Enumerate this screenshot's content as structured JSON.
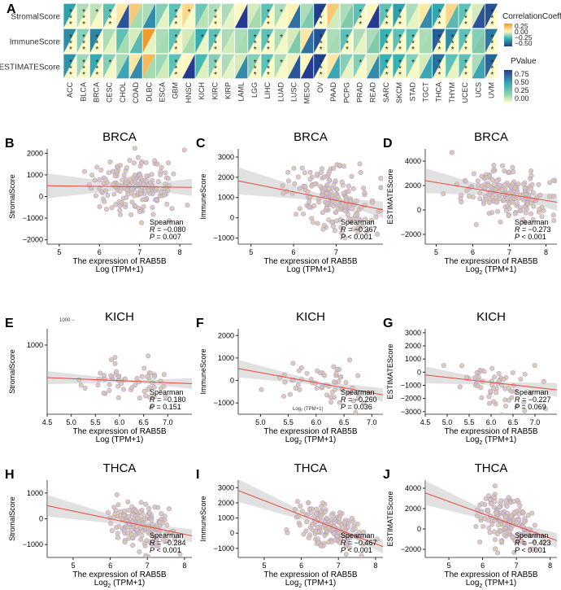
{
  "panel_a": {
    "letter": "A",
    "rows": [
      "StromalScore",
      "ImmuneScore",
      "ESTIMATEScore"
    ],
    "cancers": [
      "ACC",
      "BLCA",
      "BRCA",
      "CESC",
      "CHOL",
      "COAD",
      "DLBC",
      "ESCA",
      "GBM",
      "HNSC",
      "KICH",
      "KIRC",
      "KIRP",
      "LAML",
      "LGG",
      "LIHC",
      "LUAD",
      "LUSC",
      "MESO",
      "OV",
      "PAAD",
      "PCPG",
      "PRAD",
      "READ",
      "SARC",
      "SKCM",
      "STAD",
      "TGCT",
      "THCA",
      "THYM",
      "UCEC",
      "UCS",
      "UVM"
    ],
    "coeff_legend_title": "CorrelationCoeff",
    "coeff_ticks": [
      "0.25",
      "0.00",
      "−0.25",
      "−0.50"
    ],
    "pvalue_legend_title": "PValue",
    "pvalue_ticks": [
      "0.75",
      "0.50",
      "0.25",
      "0.00"
    ],
    "colors": {
      "pos": "#f39a2b",
      "zero": "#fdf8c0",
      "neg_mid": "#35b3b3",
      "neg_strong": "#1f3f8f"
    }
  },
  "chart_data": {
    "type": "heatmap",
    "rows": [
      "StromalScore",
      "ImmuneScore",
      "ESTIMATEScore"
    ],
    "columns": [
      "ACC",
      "BLCA",
      "BRCA",
      "CESC",
      "CHOL",
      "COAD",
      "DLBC",
      "ESCA",
      "GBM",
      "HNSC",
      "KICH",
      "KIRC",
      "KIRP",
      "LAML",
      "LGG",
      "LIHC",
      "LUAD",
      "LUSC",
      "MESO",
      "OV",
      "PAAD",
      "PCPG",
      "PRAD",
      "READ",
      "SARC",
      "SKCM",
      "STAD",
      "TGCT",
      "THCA",
      "THYM",
      "UCEC",
      "UCS",
      "UVM"
    ],
    "correlation": [
      [
        -0.3,
        -0.1,
        -0.08,
        -0.2,
        0.05,
        0.15,
        -0.1,
        -0.15,
        -0.2,
        0.1,
        -0.18,
        -0.1,
        -0.1,
        0.0,
        -0.05,
        -0.2,
        -0.1,
        0.02,
        -0.1,
        -0.55,
        0.15,
        -0.1,
        -0.2,
        0.0,
        -0.2,
        -0.3,
        -0.1,
        0.05,
        -0.28,
        0.1,
        -0.2,
        -0.05,
        -0.5
      ],
      [
        -0.35,
        -0.15,
        -0.37,
        -0.1,
        -0.2,
        -0.05,
        0.3,
        -0.1,
        -0.2,
        -0.05,
        -0.26,
        -0.2,
        -0.1,
        -0.1,
        -0.2,
        -0.2,
        -0.1,
        -0.05,
        0.05,
        -0.5,
        -0.1,
        -0.2,
        -0.1,
        -0.1,
        -0.25,
        -0.2,
        -0.2,
        -0.1,
        -0.47,
        -0.35,
        -0.2,
        -0.15,
        -0.4
      ],
      [
        -0.33,
        -0.12,
        -0.27,
        -0.15,
        -0.1,
        0.05,
        0.2,
        -0.12,
        -0.2,
        0.0,
        -0.23,
        -0.15,
        -0.1,
        -0.05,
        -0.15,
        -0.2,
        -0.1,
        -0.02,
        0.0,
        -0.55,
        0.05,
        -0.15,
        -0.15,
        -0.05,
        -0.25,
        -0.25,
        -0.15,
        -0.05,
        -0.42,
        -0.2,
        -0.2,
        -0.1,
        -0.45
      ]
    ],
    "pvalue": [
      [
        0.0,
        0.0,
        0.01,
        0.0,
        0.8,
        0.2,
        0.6,
        0.05,
        0.0,
        0.01,
        0.15,
        0.0,
        0.05,
        0.95,
        0.2,
        0.0,
        0.01,
        0.7,
        0.3,
        0.0,
        0.1,
        0.3,
        0.0,
        0.95,
        0.0,
        0.0,
        0.05,
        0.6,
        0.0,
        0.4,
        0.0,
        0.8,
        0.0
      ],
      [
        0.0,
        0.0,
        0.0,
        0.05,
        0.2,
        0.4,
        0.05,
        0.2,
        0.0,
        0.2,
        0.04,
        0.0,
        0.1,
        0.2,
        0.0,
        0.0,
        0.02,
        0.3,
        0.7,
        0.0,
        0.2,
        0.0,
        0.05,
        0.3,
        0.0,
        0.0,
        0.0,
        0.2,
        0.0,
        0.0,
        0.0,
        0.3,
        0.0
      ],
      [
        0.0,
        0.0,
        0.0,
        0.02,
        0.5,
        0.6,
        0.2,
        0.1,
        0.0,
        0.9,
        0.07,
        0.0,
        0.05,
        0.6,
        0.0,
        0.0,
        0.01,
        0.8,
        0.9,
        0.0,
        0.5,
        0.05,
        0.01,
        0.6,
        0.0,
        0.0,
        0.01,
        0.5,
        0.0,
        0.05,
        0.0,
        0.5,
        0.0
      ]
    ],
    "coeff_range": [
      -0.6,
      0.35
    ],
    "pvalue_range": [
      0,
      1
    ],
    "significance_marker": "*"
  },
  "scatter_panels": [
    {
      "letter": "B",
      "title": "BRCA",
      "ylabel": "StromalScore",
      "xlabel": "The expression of RAB5B",
      "xlabel2": "Log",
      "xlabel_tail": "(TPM+1)",
      "xlim": [
        4.7,
        8.3
      ],
      "ylim": [
        -2200,
        2200
      ],
      "xticks": [
        "5",
        "6",
        "7",
        "8"
      ],
      "yticks": [
        "2000",
        "1000",
        "0",
        "−1000",
        "−2000"
      ],
      "ytick_vals": [
        2000,
        1000,
        0,
        -1000,
        -2000
      ],
      "xtick_vals": [
        5,
        6,
        7,
        8
      ],
      "method": "Spearman",
      "r_label": "R",
      "r_value": "= −0.080",
      "p_label": "P",
      "p_value": "= 0.007",
      "r": -0.08,
      "n": 190,
      "center": [
        6.9,
        500
      ],
      "spread": [
        0.55,
        650
      ],
      "intercept": 590,
      "slope": -20
    },
    {
      "letter": "C",
      "title": "BRCA",
      "ylabel": "ImmuneScore",
      "xlabel": "The expression of RAB5B",
      "xlabel2": "Log",
      "xlabel_tail": "(TPM+1)",
      "xlim": [
        4.7,
        8.1
      ],
      "ylim": [
        -1300,
        3400
      ],
      "xticks": [
        "5",
        "6",
        "7"
      ],
      "yticks": [
        "3000",
        "2000",
        "1000",
        "0",
        "−1000"
      ],
      "ytick_vals": [
        3000,
        2000,
        1000,
        0,
        -1000
      ],
      "xtick_vals": [
        5,
        6,
        7
      ],
      "method": "Spearman",
      "r_label": "R",
      "r_value": "= −0.367",
      "p_label": "P",
      "p_value": "< 0.001",
      "r": -0.367,
      "n": 190,
      "center": [
        6.9,
        1200
      ],
      "spread": [
        0.55,
        750
      ],
      "intercept": 3800,
      "slope": -420
    },
    {
      "letter": "D",
      "title": "BRCA",
      "ylabel": "ESTIMATEScore",
      "xlabel": "The expression of RAB5B",
      "xlabel2": "Log",
      "xlabel_sub": "2",
      "xlabel_tail": "(TPM+1)",
      "xlim": [
        4.7,
        8.3
      ],
      "ylim": [
        -2800,
        5000
      ],
      "xticks": [
        "5",
        "6",
        "7",
        "8"
      ],
      "yticks": [
        "4000",
        "2000",
        "0",
        "−2000"
      ],
      "ytick_vals": [
        4000,
        2000,
        0,
        -2000
      ],
      "xtick_vals": [
        5,
        6,
        7,
        8
      ],
      "method": "Spearman",
      "r_label": "R",
      "r_value": "= −0.273",
      "p_label": "P",
      "p_value": "< 0.001",
      "r": -0.273,
      "n": 190,
      "center": [
        6.9,
        1500
      ],
      "spread": [
        0.55,
        1150
      ],
      "intercept": 4700,
      "slope": -490
    },
    {
      "letter": "E",
      "title": "KICH",
      "ylabel": "StromalScore",
      "xlabel": "The expression of RAB5B",
      "xlabel2": "Log",
      "xlabel_tail": "(TPM+1)",
      "xlim": [
        4.5,
        7.5
      ],
      "ylim": [
        -2400,
        1800
      ],
      "xticks": [
        "4.5",
        "5.0",
        "5.5",
        "6.0",
        "6.5",
        "7.0"
      ],
      "yticks": [
        "1000"
      ],
      "ytick_vals": [
        1000
      ],
      "xtick_vals": [
        4.5,
        5.0,
        5.5,
        6.0,
        6.5,
        7.0
      ],
      "method": "Spearman",
      "r_label": "R",
      "r_value": "= −0.180",
      "p_label": "P",
      "p_value": "= 0.151",
      "r": -0.18,
      "n": 60,
      "center": [
        6.2,
        -700
      ],
      "spread": [
        0.45,
        450
      ],
      "intercept": -150,
      "slope": -100
    },
    {
      "letter": "F",
      "title": "KICH",
      "ylabel": "ImmuneScore",
      "xlabel": "The expression of RAB5B",
      "xlabel2": "Log",
      "xlabel_sub": "2",
      "xlabel_tail": "(TPM+1)",
      "xlim": [
        4.6,
        7.2
      ],
      "ylim": [
        -1500,
        2300
      ],
      "xticks": [
        "5.0",
        "5.5",
        "6.0",
        "6.5",
        "7.0"
      ],
      "yticks": [
        "2000",
        "1000",
        "0",
        "−1000"
      ],
      "ytick_vals": [
        2000,
        1000,
        0,
        -1000
      ],
      "xtick_vals": [
        5.0,
        5.5,
        6.0,
        6.5,
        7.0
      ],
      "method": "Spearman",
      "r_label": "R",
      "r_value": "= −0.260",
      "p_label": "P",
      "p_value": "= 0.036",
      "r": -0.26,
      "n": 60,
      "center": [
        6.1,
        -200
      ],
      "spread": [
        0.45,
        600
      ],
      "intercept": 2600,
      "slope": -450
    },
    {
      "letter": "G",
      "title": "KICH",
      "ylabel": "ESTIMATEScore",
      "xlabel": "The expression of RAB5B",
      "xlabel2": "Log",
      "xlabel_sub": "2",
      "xlabel_tail": "(TPM+1)",
      "xlim": [
        4.5,
        7.5
      ],
      "ylim": [
        -3200,
        3300
      ],
      "xticks": [
        "4.5",
        "5.0",
        "5.5",
        "6.0",
        "6.5",
        "7.0"
      ],
      "yticks": [
        "3000",
        "2000",
        "1000",
        "0",
        "−1000",
        "−2000",
        "−3000"
      ],
      "ytick_vals": [
        3000,
        2000,
        1000,
        0,
        -1000,
        -2000,
        -3000
      ],
      "xtick_vals": [
        4.5,
        5.0,
        5.5,
        6.0,
        6.5,
        7.0
      ],
      "method": "Spearman",
      "r_label": "R",
      "r_value": "= −0.227",
      "p_label": "P",
      "p_value": "= 0.069",
      "r": -0.227,
      "n": 60,
      "center": [
        6.2,
        -800
      ],
      "spread": [
        0.45,
        900
      ],
      "intercept": 1500,
      "slope": -380
    },
    {
      "letter": "H",
      "title": "THCA",
      "ylabel": "StromalScore",
      "xlabel": "The expression of RAB5B",
      "xlabel2": "Log",
      "xlabel_sub": "2",
      "xlabel_tail": "(TPM+1)",
      "xlim": [
        4.3,
        8.2
      ],
      "ylim": [
        -1500,
        1500
      ],
      "xticks": [
        "5",
        "6",
        "7",
        "8"
      ],
      "yticks": [
        "1000",
        "0",
        "−1000"
      ],
      "ytick_vals": [
        1000,
        0,
        -1000
      ],
      "xtick_vals": [
        5,
        6,
        7,
        8
      ],
      "method": "Spearman",
      "r_label": "R",
      "r_value": "= −0.284",
      "p_label": "P",
      "p_value": "< 0.001",
      "r": -0.284,
      "n": 170,
      "center": [
        6.8,
        -100
      ],
      "spread": [
        0.45,
        420
      ],
      "intercept": 1800,
      "slope": -300
    },
    {
      "letter": "I",
      "title": "THCA",
      "ylabel": "ImmuneScore",
      "xlabel": "The expression of RAB5B",
      "xlabel2": "Log",
      "xlabel_sub": "2",
      "xlabel_tail": "(TPM+1)",
      "xlim": [
        4.3,
        8.2
      ],
      "ylim": [
        -1600,
        3500
      ],
      "xticks": [
        "5",
        "6",
        "7",
        "8"
      ],
      "yticks": [
        "3000",
        "2000",
        "1000",
        "0",
        "−1000"
      ],
      "ytick_vals": [
        3000,
        2000,
        1000,
        0,
        -1000
      ],
      "xtick_vals": [
        5,
        6,
        7,
        8
      ],
      "method": "Spearman",
      "r_label": "R",
      "r_value": "= −0.467",
      "p_label": "P",
      "p_value": "< 0.001",
      "r": -0.467,
      "n": 170,
      "center": [
        6.8,
        500
      ],
      "spread": [
        0.45,
        750
      ],
      "intercept": 6900,
      "slope": -950
    },
    {
      "letter": "J",
      "title": "THCA",
      "ylabel": "ESTIMATEScore",
      "xlabel": "The expression of RAB5B",
      "xlabel2": "Log",
      "xlabel_sub": "2",
      "xlabel_tail": "(TPM+1)",
      "xlim": [
        4.3,
        8.2
      ],
      "ylim": [
        -2800,
        4800
      ],
      "xticks": [
        "5",
        "6",
        "7",
        "8"
      ],
      "yticks": [
        "4000",
        "2000",
        "0",
        "−2000"
      ],
      "ytick_vals": [
        4000,
        2000,
        0,
        -2000
      ],
      "xtick_vals": [
        5,
        6,
        7,
        8
      ],
      "method": "Spearman",
      "r_label": "R",
      "r_value": "= −0.423",
      "p_label": "P",
      "p_value": "< 0.001",
      "r": -0.423,
      "n": 170,
      "center": [
        6.8,
        600
      ],
      "spread": [
        0.45,
        1200
      ],
      "intercept": 8700,
      "slope": -1200
    }
  ],
  "stray_labels": {
    "E_inset": "1000 −",
    "F_xlabel_extra": "Log₂ (TPM+1)"
  }
}
